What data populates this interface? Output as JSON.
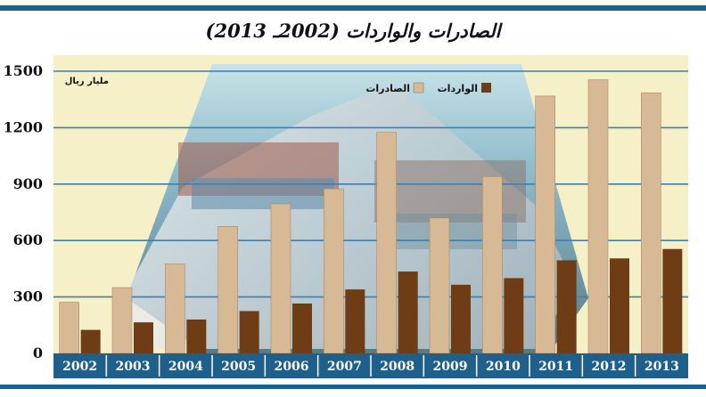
{
  "title": "الصادرات والواردات (2002ـ 2013)",
  "chart_data": {
    "type": "bar",
    "title": "الصادرات والواردات (2002ـ 2013)",
    "unit_label": "مليار ريال",
    "categories": [
      "2002",
      "2003",
      "2004",
      "2005",
      "2006",
      "2007",
      "2008",
      "2009",
      "2010",
      "2011",
      "2012",
      "2013"
    ],
    "series": [
      {
        "name": "الصادرات",
        "color": "#d8b996",
        "values": [
          272,
          350,
          475,
          675,
          795,
          875,
          1175,
          720,
          940,
          1368,
          1455,
          1385
        ]
      },
      {
        "name": "الواردات",
        "color": "#6e3d15",
        "values": [
          125,
          165,
          180,
          225,
          265,
          340,
          435,
          365,
          400,
          495,
          505,
          555
        ]
      }
    ],
    "yticks": [
      "0",
      "300",
      "600",
      "900",
      "1200",
      "1500"
    ],
    "ylim": [
      0,
      1500
    ],
    "grid": true,
    "legend": "top-right"
  }
}
